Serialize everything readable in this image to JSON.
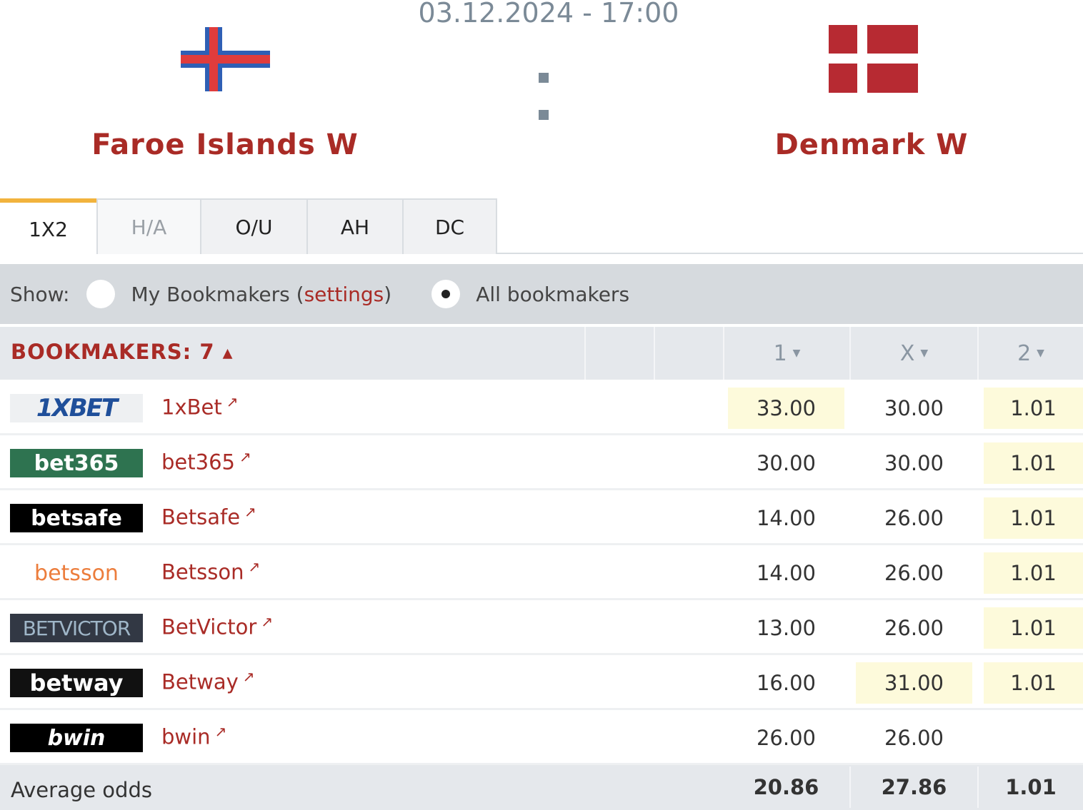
{
  "match": {
    "datetime": "03.12.2024 - 17:00",
    "home": "Faroe Islands W",
    "away": "Denmark W",
    "home_flag": "faroe-islands-flag",
    "away_flag": "denmark-flag"
  },
  "tabs": [
    {
      "label": "1X2",
      "active": true
    },
    {
      "label": "H/A"
    },
    {
      "label": "O/U"
    },
    {
      "label": "AH"
    },
    {
      "label": "DC"
    }
  ],
  "show": {
    "label": "Show:",
    "my_prefix": "My Bookmakers (",
    "settings": "settings",
    "my_suffix": ")",
    "all": "All bookmakers",
    "selected": "All bookmakers"
  },
  "table": {
    "bookmakers_label": "BOOKMAKERS: 7",
    "sort_icon": "triangle-up",
    "cols": [
      "1",
      "X",
      "2"
    ],
    "rows": [
      {
        "logo": "1XBET",
        "name": "1xBet",
        "odds": [
          "33.00",
          "30.00",
          "1.01"
        ],
        "hl": [
          true,
          false,
          true
        ]
      },
      {
        "logo": "bet365",
        "name": "bet365",
        "odds": [
          "30.00",
          "30.00",
          "1.01"
        ],
        "hl": [
          false,
          false,
          true
        ]
      },
      {
        "logo": "betsafe",
        "name": "Betsafe",
        "odds": [
          "14.00",
          "26.00",
          "1.01"
        ],
        "hl": [
          false,
          false,
          true
        ]
      },
      {
        "logo": "betsson",
        "name": "Betsson",
        "odds": [
          "14.00",
          "26.00",
          "1.01"
        ],
        "hl": [
          false,
          false,
          true
        ]
      },
      {
        "logo": "BETVICTOR",
        "name": "BetVictor",
        "odds": [
          "13.00",
          "26.00",
          "1.01"
        ],
        "hl": [
          false,
          false,
          true
        ]
      },
      {
        "logo": "betway",
        "name": "Betway",
        "odds": [
          "16.00",
          "31.00",
          "1.01"
        ],
        "hl": [
          false,
          true,
          true
        ]
      },
      {
        "logo": "bwin",
        "name": "bwin",
        "odds": [
          "26.00",
          "26.00",
          ""
        ],
        "hl": [
          false,
          false,
          false
        ]
      }
    ],
    "average": {
      "label": "Average odds",
      "odds": [
        "20.86",
        "27.86",
        "1.01"
      ]
    }
  },
  "colors": {
    "accent": "#a92b26",
    "highlight": "#fdfadb",
    "tab_active": "#f2b33d"
  }
}
